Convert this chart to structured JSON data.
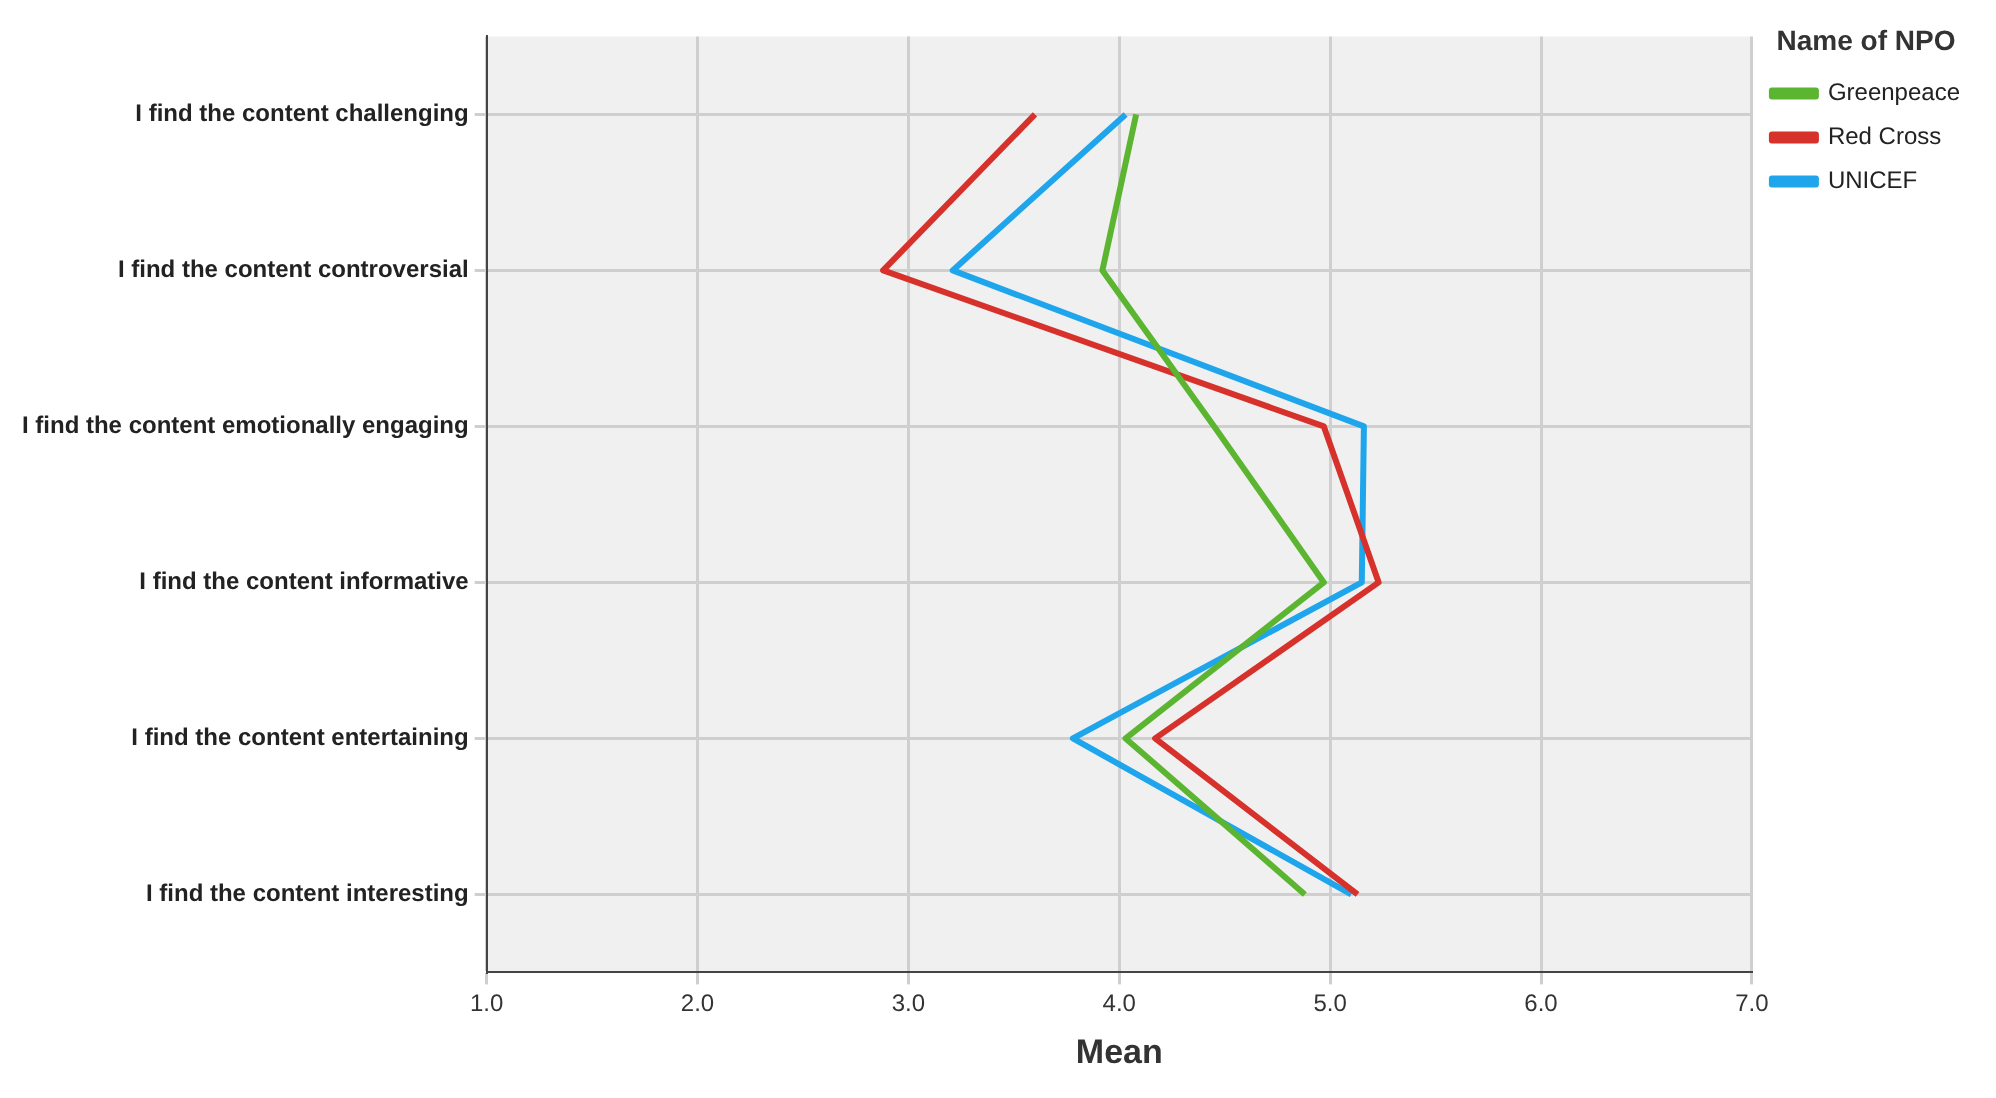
{
  "chart_data": {
    "type": "line",
    "orientation": "horizontal",
    "xlabel": "Mean",
    "legend_title": "Name of NPO",
    "categories": [
      "I find the content challenging",
      "I find the content controversial",
      "I find the content emotionally engaging",
      "I find the content informative",
      "I find the content entertaining",
      "I find the content interesting"
    ],
    "series": [
      {
        "name": "Greenpeace",
        "color": "#5cb531",
        "values": [
          4.08,
          3.92,
          4.45,
          4.97,
          4.03,
          4.88
        ]
      },
      {
        "name": "Red Cross",
        "color": "#d6312b",
        "values": [
          3.6,
          2.88,
          4.97,
          5.23,
          4.17,
          5.13
        ]
      },
      {
        "name": "UNICEF",
        "color": "#1ea5ec",
        "values": [
          4.03,
          3.21,
          5.16,
          5.15,
          3.78,
          5.1
        ]
      }
    ],
    "xlim": [
      1,
      7
    ],
    "xticks": [
      {
        "value": 1,
        "label": "1.0"
      },
      {
        "value": 2,
        "label": "2.0"
      },
      {
        "value": 3,
        "label": "3.0"
      },
      {
        "value": 4,
        "label": "4.0"
      },
      {
        "value": 5,
        "label": "5.0"
      },
      {
        "value": 6,
        "label": "6.0"
      },
      {
        "value": 7,
        "label": "7.0"
      }
    ],
    "grid": true,
    "legend": "top right",
    "marker": "none",
    "line_style": "solid"
  }
}
